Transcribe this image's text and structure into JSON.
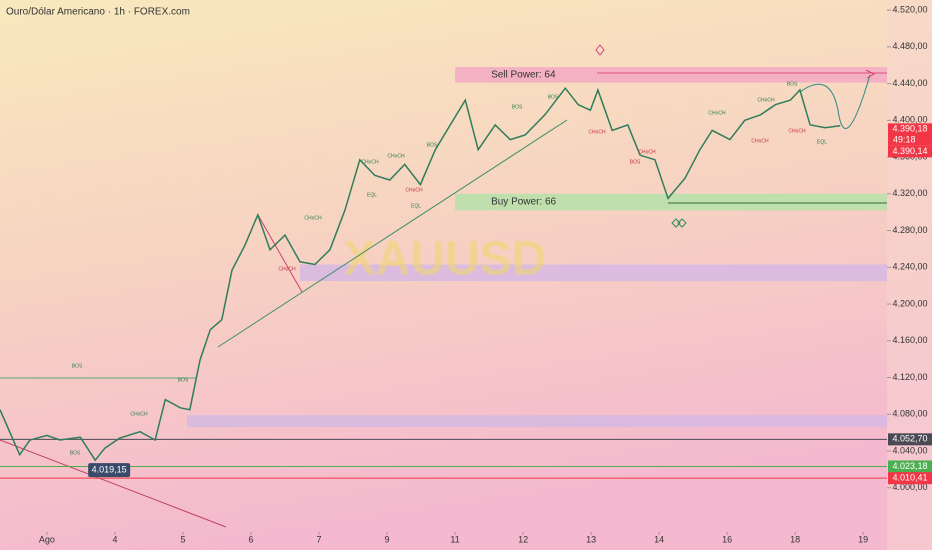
{
  "chart_data": {
    "type": "line",
    "title": "Ouro/Dólar Americano · 1h · FOREX.com",
    "watermark": "XAUUSD",
    "color": "#2e7d5b",
    "x": [
      -0.69,
      -0.4,
      -0.25,
      0,
      0.19,
      0.49,
      0.71,
      0.85,
      1.07,
      1.37,
      1.59,
      1.74,
      1.96,
      2.1,
      2.25,
      2.4,
      2.57,
      2.72,
      2.91,
      3.1,
      3.28,
      3.5,
      3.72,
      3.94,
      4.16,
      4.38,
      4.6,
      4.82,
      5.04,
      5.26,
      5.49,
      5.71,
      5.93,
      6.15,
      6.34,
      6.59,
      6.81,
      7.03,
      7.32,
      7.62,
      7.81,
      7.99,
      8.1,
      8.31,
      8.54,
      8.72,
      8.94,
      9.13,
      9.38,
      9.6,
      9.78,
      10.04,
      10.26,
      10.49,
      10.71,
      10.93,
      11.07,
      11.22,
      11.44,
      11.66
    ],
    "values": [
      4085,
      4036,
      4052,
      4057,
      4052,
      4055,
      4030,
      4043,
      4054,
      4061,
      4052,
      4096,
      4087,
      4085,
      4139,
      4172,
      4183,
      4237,
      4264,
      4297,
      4259,
      4275,
      4246,
      4243,
      4259,
      4302,
      4357,
      4340,
      4335,
      4352,
      4330,
      4368,
      4395,
      4422,
      4368,
      4395,
      4379,
      4384,
      4406,
      4435,
      4417,
      4411,
      4433,
      4389,
      4395,
      4362,
      4357,
      4315,
      4337,
      4368,
      4389,
      4379,
      4400,
      4406,
      4417,
      4422,
      4433,
      4395,
      4392,
      4394
    ],
    "xlim": [
      -0.69,
      12.35
    ],
    "xticks": [
      {
        "value": 0,
        "label": "Ago"
      },
      {
        "value": 1,
        "label": "4"
      },
      {
        "value": 2,
        "label": "5"
      },
      {
        "value": 3,
        "label": "6"
      },
      {
        "value": 4,
        "label": "7"
      },
      {
        "value": 5,
        "label": "9"
      },
      {
        "value": 6,
        "label": "11"
      },
      {
        "value": 7,
        "label": "12"
      },
      {
        "value": 8,
        "label": "13"
      },
      {
        "value": 9,
        "label": "14"
      },
      {
        "value": 10,
        "label": "16"
      },
      {
        "value": 11,
        "label": "18"
      },
      {
        "value": 12,
        "label": "19"
      }
    ],
    "ylim": [
      3954,
      4531
    ],
    "yticks": [
      {
        "value": 4000,
        "label": "4.000,00"
      },
      {
        "value": 4040,
        "label": "4.040,00"
      },
      {
        "value": 4080,
        "label": "4.080,00"
      },
      {
        "value": 4120,
        "label": "4.120,00"
      },
      {
        "value": 4160,
        "label": "4.160,00"
      },
      {
        "value": 4200,
        "label": "4.200,00"
      },
      {
        "value": 4240,
        "label": "4.240,00"
      },
      {
        "value": 4280,
        "label": "4.280,00"
      },
      {
        "value": 4320,
        "label": "4.320,00"
      },
      {
        "value": 4360,
        "label": "4.360,00"
      },
      {
        "value": 4400,
        "label": "4.400,00"
      },
      {
        "value": 4440,
        "label": "4.440,00"
      },
      {
        "value": 4480,
        "label": "4.480,00"
      },
      {
        "value": 4520,
        "label": "4.520,00"
      }
    ],
    "zones": [
      {
        "label": "Sell Power: 64",
        "x0": 6.0,
        "range": [
          4441,
          4458
        ],
        "color": "#f4a9c4"
      },
      {
        "label": "Buy Power: 66",
        "x0": 6.0,
        "range": [
          4302,
          4320
        ],
        "color": "#b5e2a8"
      },
      {
        "x0": 3.72,
        "range": [
          4225,
          4243
        ],
        "color": "#d6b8e4"
      },
      {
        "x0": 2.06,
        "range": [
          4066,
          4079
        ],
        "color": "#d6b8e4"
      }
    ],
    "price_tags": [
      {
        "value": 4390.18,
        "label": "4.390,18",
        "color": "#f23645"
      },
      {
        "value": 4390.14,
        "label": "4.390,14",
        "color": "#f23645"
      },
      {
        "value": 4052.7,
        "label": "4.052,70",
        "color": "#4a4a55"
      },
      {
        "value": 4023.18,
        "label": "4.023,18",
        "color": "#4caf50"
      },
      {
        "value": 4010.41,
        "label": "4.010,41",
        "color": "#f23645"
      }
    ],
    "countdown": "49:18",
    "low_label": {
      "x": 0.9,
      "value": 4019.15,
      "label": "4.019,15"
    },
    "structure_labels": [
      "BOS",
      "BOS",
      "CHoCH",
      "BOS",
      "CHoCH",
      "CHoCH",
      "CHoCH",
      "CHoCH",
      "CHoCH",
      "EQL",
      "EQL",
      "BOS",
      "BOS",
      "BOS",
      "CHoCH",
      "BOS",
      "CHoCH",
      "CHoCH",
      "CHoCH",
      "CHoCH",
      "BOS",
      "CHoCH",
      "EQL"
    ]
  }
}
